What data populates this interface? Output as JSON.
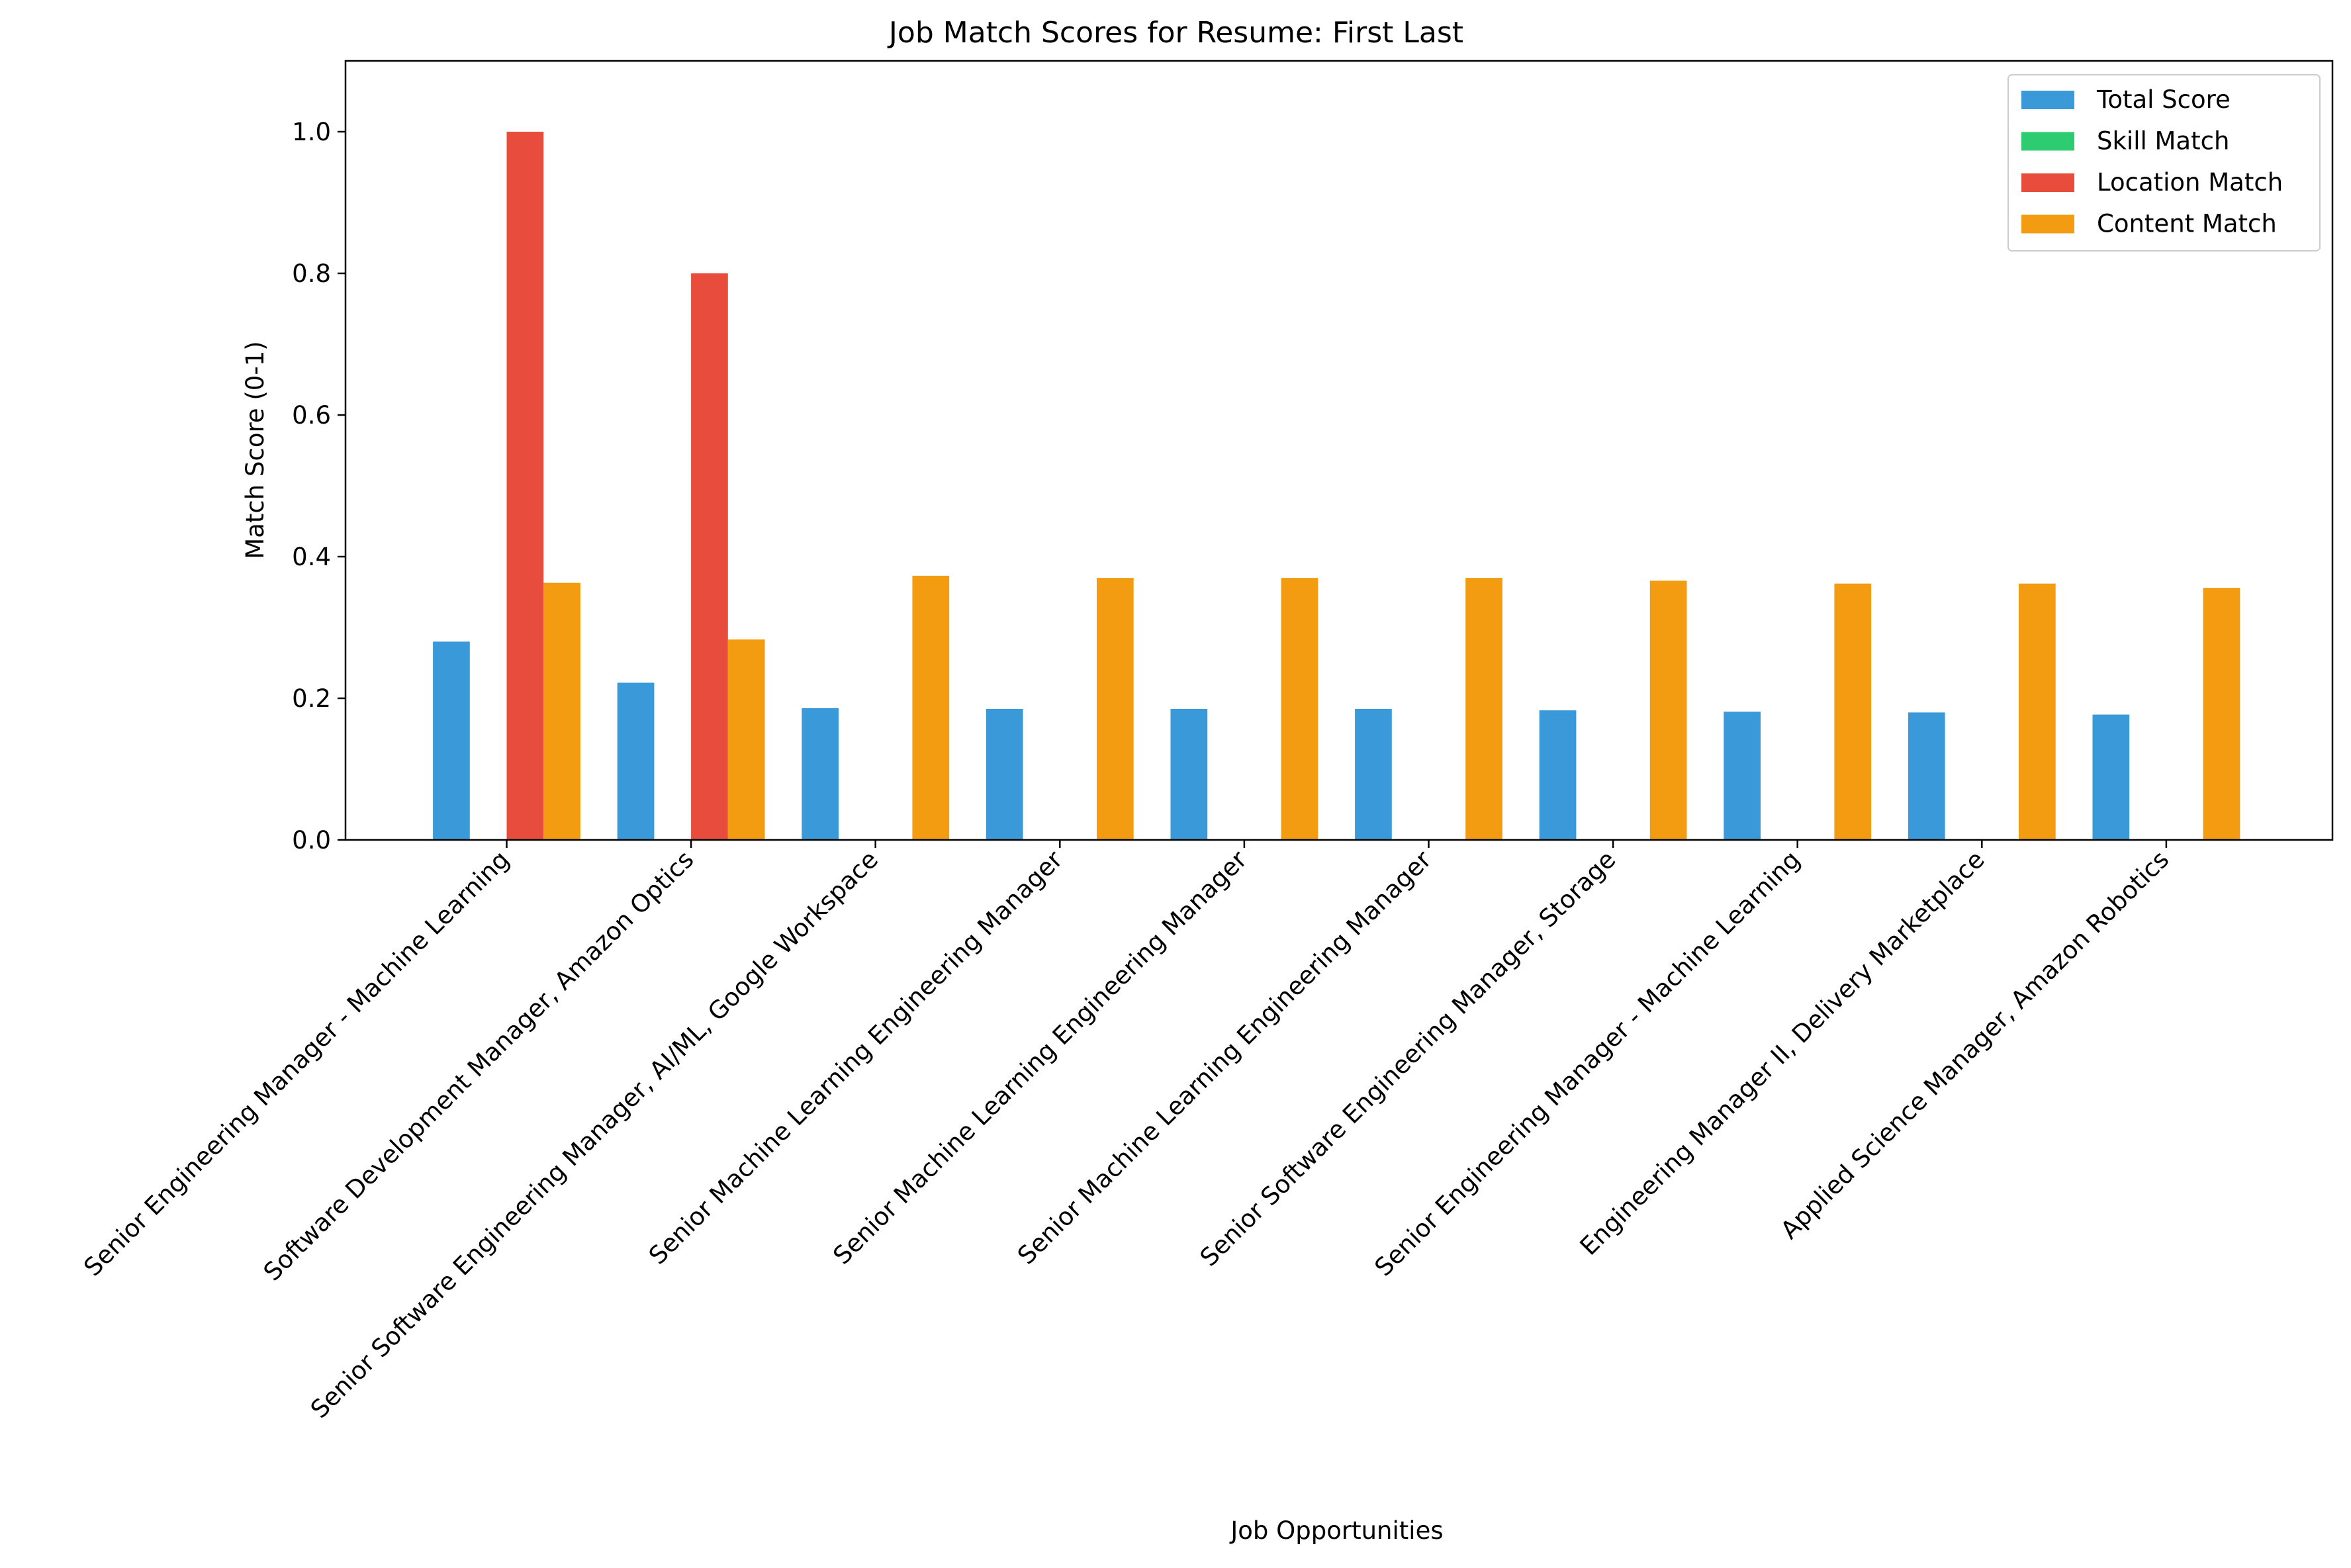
{
  "chart_data": {
    "type": "bar",
    "title": "Job Match Scores for Resume: First Last",
    "xlabel": "Job Opportunities",
    "ylabel": "Match Score (0-1)",
    "ylim": [
      0,
      1.1
    ],
    "yticks": [
      "0.0",
      "0.2",
      "0.4",
      "0.6",
      "0.8",
      "1.0"
    ],
    "grid": false,
    "legend_position": "top-right",
    "categories": [
      "Senior Engineering Manager - Machine Learning",
      "Software Development Manager, Amazon Optics",
      "Senior Software Engineering Manager, AI/ML, Google Workspace",
      "Senior Machine Learning Engineering Manager",
      "Senior Machine Learning Engineering Manager",
      "Senior Machine Learning Engineering Manager",
      "Senior Software Engineering Manager, Storage",
      "Senior Engineering Manager - Machine Learning",
      "Engineering Manager II, Delivery Marketplace",
      "Applied Science Manager, Amazon Robotics"
    ],
    "series": [
      {
        "name": "Total Score",
        "color": "#3a9ad9",
        "values": [
          0.28,
          0.222,
          0.186,
          0.185,
          0.185,
          0.185,
          0.183,
          0.181,
          0.18,
          0.177
        ]
      },
      {
        "name": "Skill Match",
        "color": "#2ecc71",
        "values": [
          0,
          0,
          0,
          0,
          0,
          0,
          0,
          0,
          0,
          0
        ]
      },
      {
        "name": "Location Match",
        "color": "#e74c3c",
        "values": [
          1.0,
          0.8,
          0,
          0,
          0,
          0,
          0,
          0,
          0,
          0
        ]
      },
      {
        "name": "Content Match",
        "color": "#f39c12",
        "values": [
          0.363,
          0.283,
          0.373,
          0.37,
          0.37,
          0.37,
          0.366,
          0.362,
          0.362,
          0.356
        ]
      }
    ]
  }
}
